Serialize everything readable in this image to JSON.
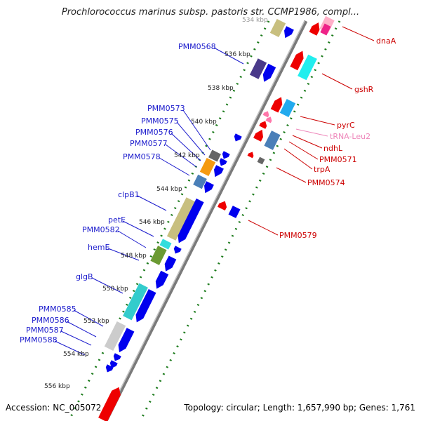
{
  "title": "Prochlorococcus marinus subsp. pastoris str. CCMP1986, compl...",
  "footer": {
    "accession": "Accession: NC_005072",
    "topology": "Topology: circular; Length: 1,657,990 bp; Genes: 1,761"
  },
  "colors": {
    "backbone": "#808080",
    "tick": "#1a7a1a",
    "left_label": "#1a1acc",
    "right_label": "#cc0000",
    "trna_label": "#ee88bb"
  },
  "position_labels": [
    "534 kbp",
    "536 kbp",
    "538 kbp",
    "540 kbp",
    "542 kbp",
    "544 kbp",
    "546 kbp",
    "548 kbp",
    "550 kbp",
    "552 kbp",
    "554 kbp",
    "556 kbp"
  ],
  "left_genes": [
    "PMM0568",
    "PMM0573",
    "PMM0575",
    "PMM0576",
    "PMM0577",
    "PMM0578",
    "clpB1",
    "petE",
    "PMM0582",
    "hemE",
    "glgB",
    "PMM0585",
    "PMM0586",
    "PMM0587",
    "PMM0588"
  ],
  "right_genes": [
    "dnaA",
    "gshR",
    "pyrC",
    "tRNA-Leu2",
    "ndhL",
    "PMM0571",
    "trpA",
    "PMM0574",
    "PMM0579"
  ]
}
